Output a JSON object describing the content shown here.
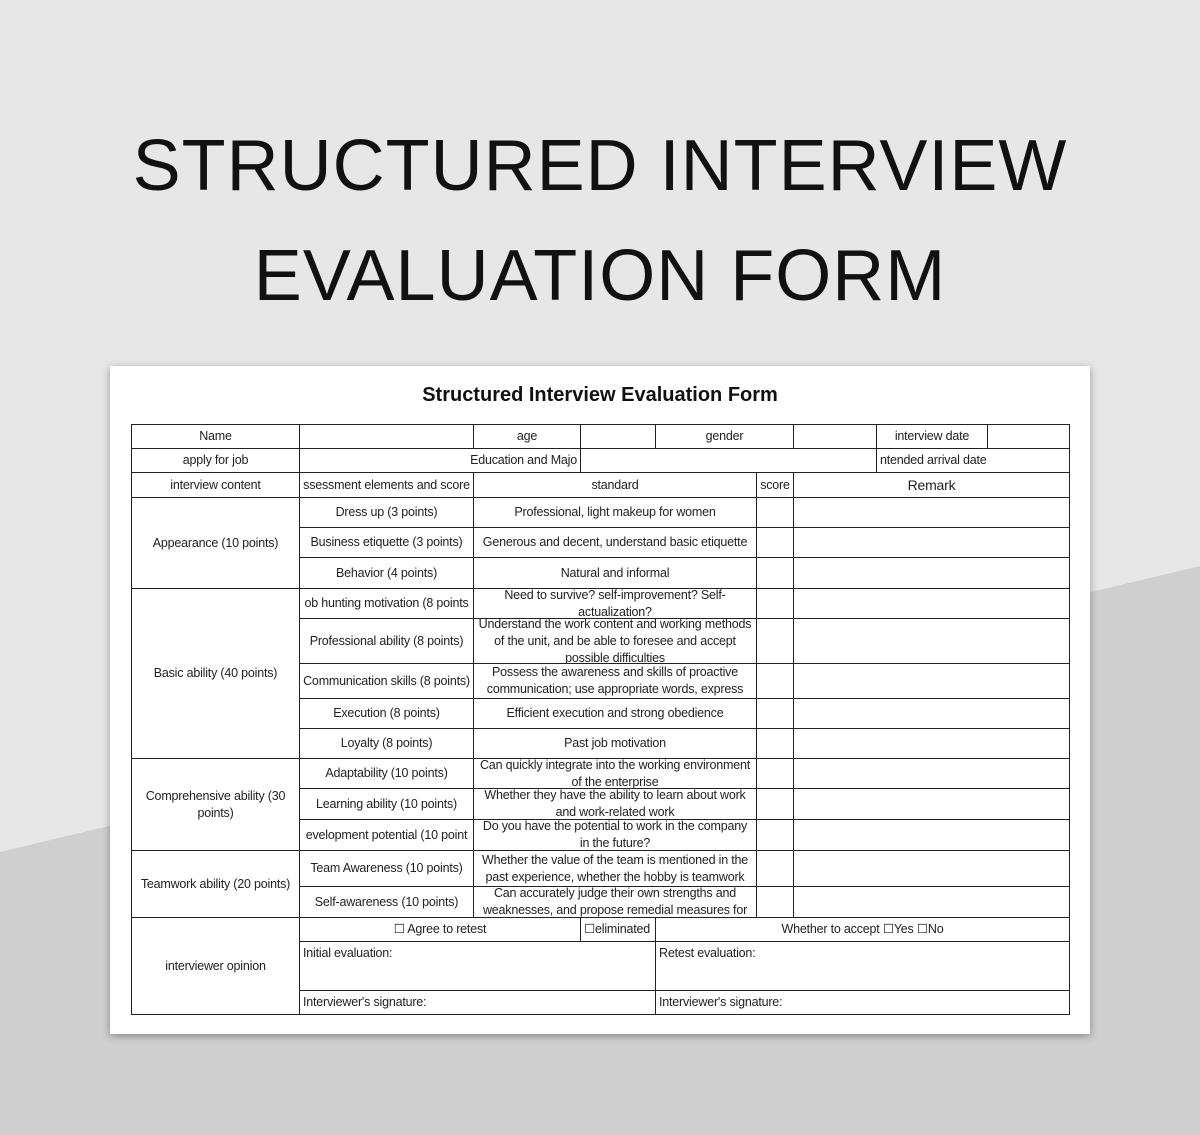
{
  "hero": {
    "line1": "STRUCTURED INTERVIEW",
    "line2": "EVALUATION FORM"
  },
  "form": {
    "title": "Structured Interview Evaluation Form",
    "header": {
      "name": "Name",
      "age": "age",
      "gender": "gender",
      "interview_date": "interview date",
      "apply_for_job": "apply for job",
      "education": "Education and Majo",
      "arrival_date": "ntended arrival date",
      "interview_content": "interview content",
      "assessment": "ssessment elements and score",
      "standard": "standard",
      "score": "score",
      "remark": "Remark"
    },
    "sections": [
      {
        "label": "Appearance (10 points)"
      },
      {
        "label": "Basic ability (40 points)"
      },
      {
        "label": "Comprehensive ability (30 points)"
      },
      {
        "label": "Teamwork ability (20 points)"
      }
    ],
    "items": [
      {
        "element": "Dress up (3 points)",
        "standard": "Professional, light makeup for women"
      },
      {
        "element": "Business etiquette (3 points)",
        "standard": "Generous and decent, understand basic etiquette"
      },
      {
        "element": "Behavior (4 points)",
        "standard": "Natural and informal"
      },
      {
        "element": "ob hunting motivation (8 points",
        "standard": "Need to survive? self-improvement? Self-actualization?"
      },
      {
        "element": "Professional ability (8 points)",
        "standard": "Understand the work content and working methods of the unit, and be able to foresee and accept possible difficulties"
      },
      {
        "element": "Communication skills (8 points)",
        "standard": "Possess the awareness and skills of proactive communication; use appropriate words, express"
      },
      {
        "element": "Execution (8 points)",
        "standard": "Efficient execution and strong obedience"
      },
      {
        "element": "Loyalty (8 points)",
        "standard": "Past job motivation"
      },
      {
        "element": "Adaptability (10 points)",
        "standard": "Can quickly integrate into the working environment of the enterprise"
      },
      {
        "element": "Learning ability (10 points)",
        "standard": "Whether they have the ability to learn about work and work-related work"
      },
      {
        "element": "evelopment potential (10 point",
        "standard": "Do you have the potential to work in the company in the future?"
      },
      {
        "element": "Team Awareness (10 points)",
        "standard": "Whether the value of the team is mentioned in the past experience, whether the hobby is teamwork"
      },
      {
        "element": "Self-awareness (10 points)",
        "standard": "Can accurately judge their own strengths and weaknesses, and propose remedial measures for"
      }
    ],
    "opinion": {
      "label": "interviewer opinion",
      "agree_retest": "☐ Agree to retest",
      "eliminated": "☐eliminated",
      "accept": "Whether to accept ☐Yes ☐No",
      "initial": "Initial evaluation:",
      "retest": "Retest evaluation:",
      "signature_left": "Interviewer's signature:",
      "signature_right": "Interviewer's signature:"
    }
  },
  "colors": {
    "background": "#e7e7e7",
    "background_dark": "#cfcfcf",
    "paper": "#ffffff",
    "border": "#222222"
  }
}
